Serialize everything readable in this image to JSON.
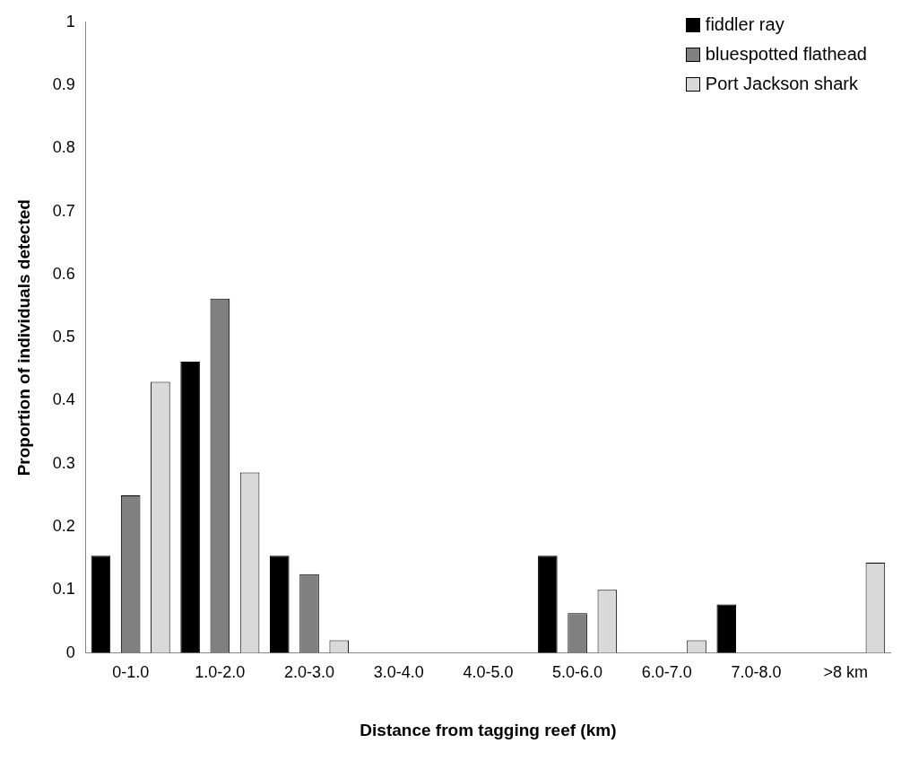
{
  "chart_data": {
    "type": "bar",
    "xlabel": "Distance from tagging reef (km)",
    "ylabel": "Proportion of individuals detected",
    "categories": [
      "0-1.0",
      "1.0-2.0",
      "2.0-3.0",
      "3.0-4.0",
      "4.0-5.0",
      "5.0-6.0",
      "6.0-7.0",
      "7.0-8.0",
      ">8 km"
    ],
    "series": [
      {
        "name": "fiddler ray",
        "color": "#000000",
        "values": [
          0.154,
          0.462,
          0.154,
          0,
          0,
          0.154,
          0,
          0.077,
          0
        ]
      },
      {
        "name": "bluespotted flathead",
        "color": "#808080",
        "values": [
          0.25,
          0.562,
          0.125,
          0,
          0,
          0.063,
          0,
          0,
          0
        ]
      },
      {
        "name": "Port Jackson shark",
        "color": "#d9d9d9",
        "values": [
          0.43,
          0.286,
          0.02,
          0,
          0,
          0.1,
          0.02,
          0,
          0.143
        ]
      }
    ],
    "ylim": [
      0,
      1
    ],
    "yticks": [
      0,
      0.1,
      0.2,
      0.3,
      0.4,
      0.5,
      0.6,
      0.7,
      0.8,
      0.9,
      1
    ],
    "grid": false,
    "legend": "top right"
  }
}
